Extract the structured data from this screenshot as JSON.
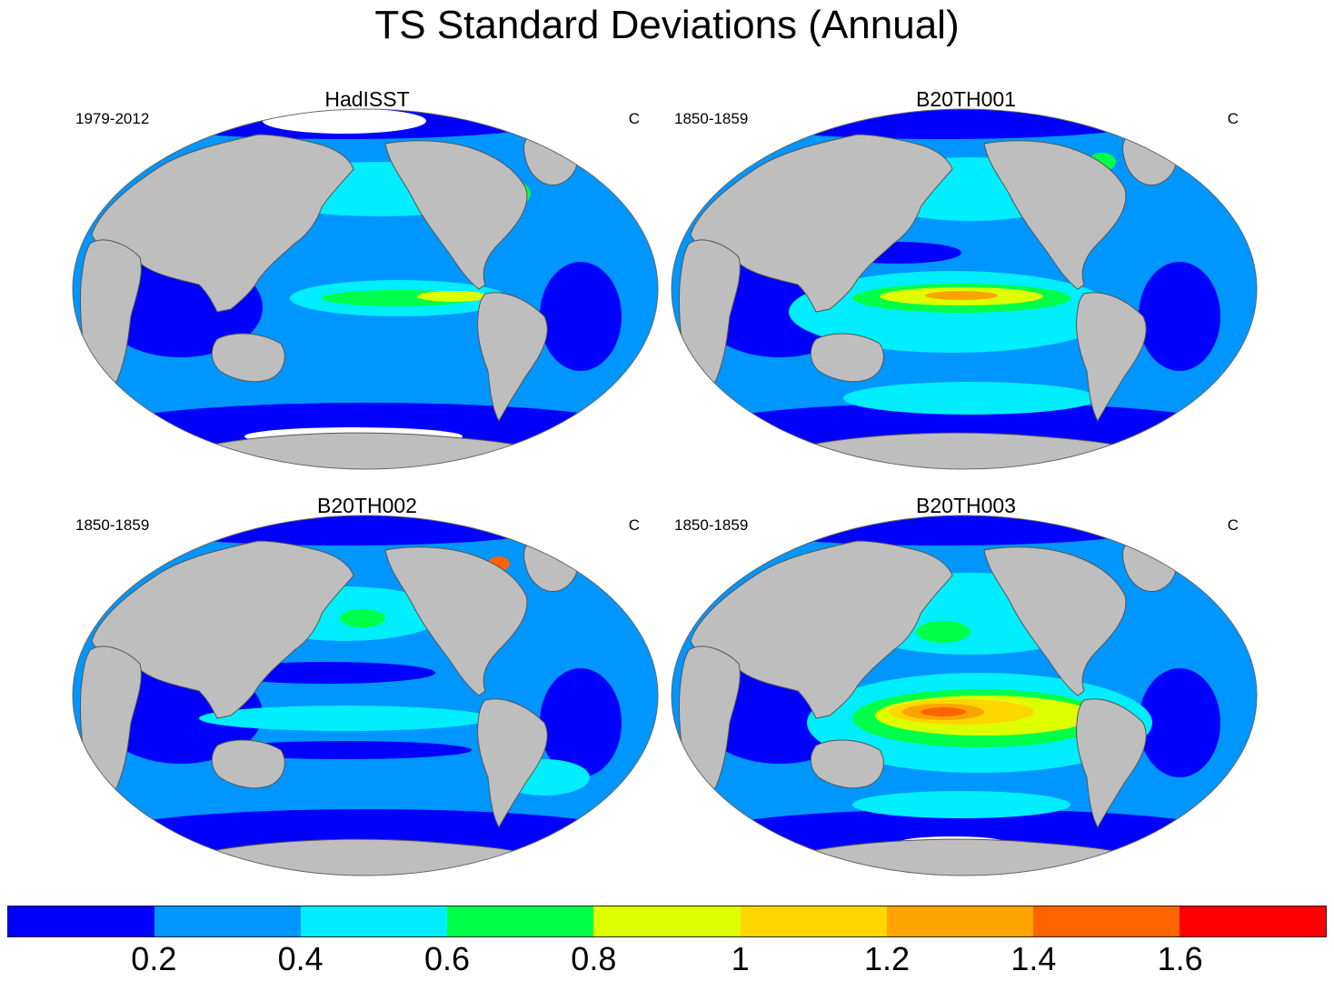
{
  "title": "TS Standard Deviations (Annual)",
  "panels": [
    {
      "title": "HadISST",
      "left": "1979-2012",
      "right": "C"
    },
    {
      "title": "B20TH001",
      "left": "1850-1859",
      "right": "C"
    },
    {
      "title": "B20TH002",
      "left": "1850-1859",
      "right": "C"
    },
    {
      "title": "B20TH003",
      "left": "1850-1859",
      "right": "C"
    }
  ],
  "colors": {
    "land": "#BEBEBE",
    "missing": "#FFFFFF",
    "outline": "#555555"
  },
  "colorbar": {
    "colors": [
      "#0000FF",
      "#0096FF",
      "#00EEFF",
      "#00FF48",
      "#DDFF00",
      "#FFD700",
      "#FFA300",
      "#FF6400",
      "#FF0000"
    ],
    "labels": [
      "0.2",
      "0.4",
      "0.6",
      "0.8",
      "1",
      "1.2",
      "1.4",
      "1.6"
    ]
  }
}
